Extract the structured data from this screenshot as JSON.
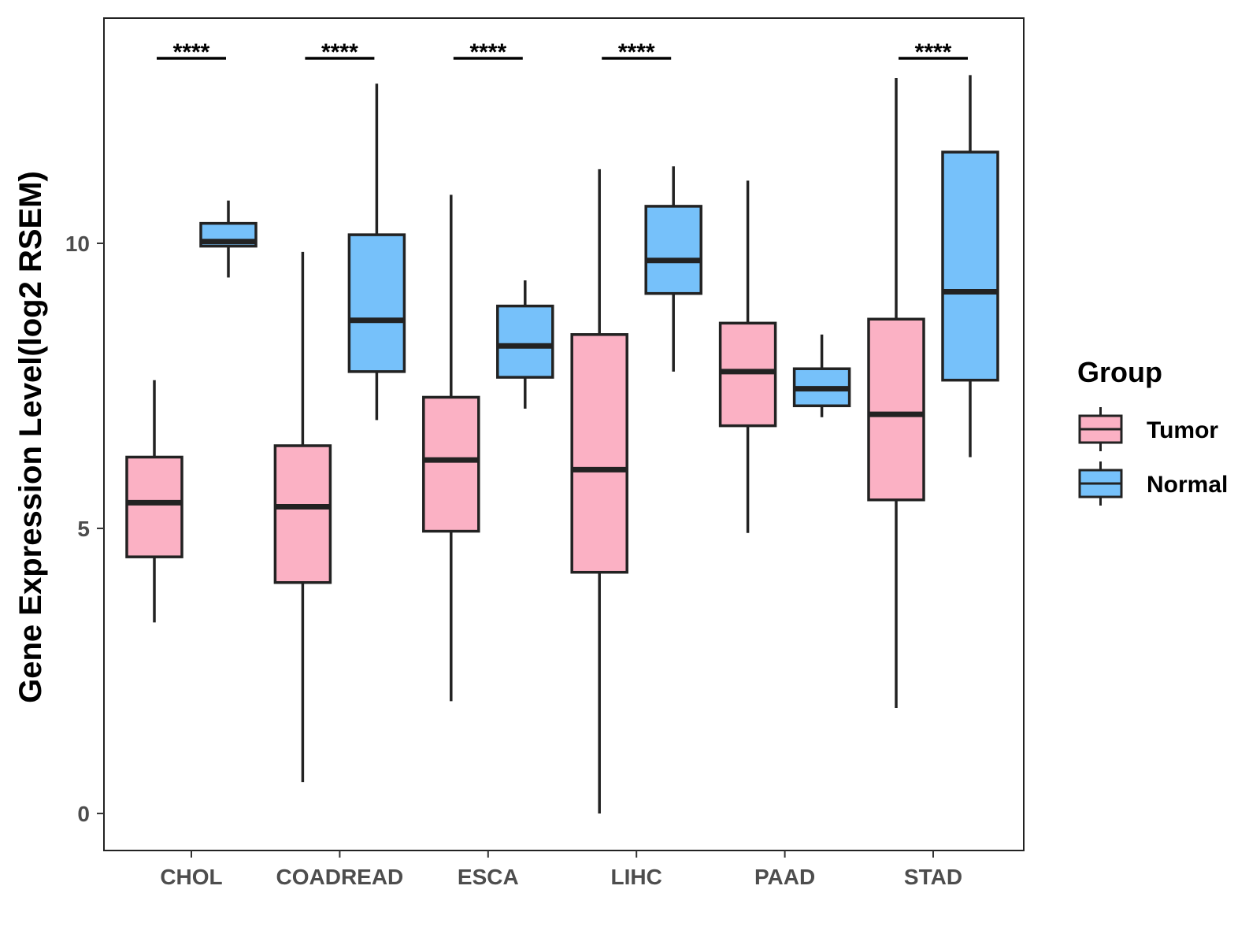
{
  "chart_data": {
    "type": "boxplot",
    "ylabel": "Gene Expression Level(log2 RSEM)",
    "xlabel": "",
    "ylim": [
      -0.65,
      13.95
    ],
    "yticks": [
      0,
      5,
      10
    ],
    "grid": false,
    "legend_position": "right",
    "legend": {
      "title": "Group",
      "entries": [
        "Tumor",
        "Normal"
      ]
    },
    "colors": {
      "Tumor": "#fbb1c4",
      "Normal": "#76c1fa",
      "stroke": "#222222"
    },
    "categories": [
      "CHOL",
      "COADREAD",
      "ESCA",
      "LIHC",
      "PAAD",
      "STAD"
    ],
    "series": [
      {
        "name": "Tumor",
        "boxes": [
          {
            "category": "CHOL",
            "whisker_low": 3.35,
            "q1": 4.5,
            "median": 5.45,
            "q3": 6.25,
            "whisker_high": 7.6
          },
          {
            "category": "COADREAD",
            "whisker_low": 0.55,
            "q1": 4.05,
            "median": 5.38,
            "q3": 6.45,
            "whisker_high": 9.85
          },
          {
            "category": "ESCA",
            "whisker_low": 1.97,
            "q1": 4.95,
            "median": 6.2,
            "q3": 7.3,
            "whisker_high": 10.85
          },
          {
            "category": "LIHC",
            "whisker_low": 0.0,
            "q1": 4.23,
            "median": 6.03,
            "q3": 8.4,
            "whisker_high": 11.3
          },
          {
            "category": "PAAD",
            "whisker_low": 4.92,
            "q1": 6.8,
            "median": 7.75,
            "q3": 8.6,
            "whisker_high": 11.1
          },
          {
            "category": "STAD",
            "whisker_low": 1.85,
            "q1": 5.5,
            "median": 7.0,
            "q3": 8.67,
            "whisker_high": 12.9
          }
        ]
      },
      {
        "name": "Normal",
        "boxes": [
          {
            "category": "CHOL",
            "whisker_low": 9.4,
            "q1": 9.95,
            "median": 10.03,
            "q3": 10.35,
            "whisker_high": 10.75
          },
          {
            "category": "COADREAD",
            "whisker_low": 6.9,
            "q1": 7.75,
            "median": 8.65,
            "q3": 10.15,
            "whisker_high": 12.8
          },
          {
            "category": "ESCA",
            "whisker_low": 7.1,
            "q1": 7.65,
            "median": 8.2,
            "q3": 8.9,
            "whisker_high": 9.35
          },
          {
            "category": "LIHC",
            "whisker_low": 7.75,
            "q1": 9.12,
            "median": 9.7,
            "q3": 10.65,
            "whisker_high": 11.35
          },
          {
            "category": "PAAD",
            "whisker_low": 6.95,
            "q1": 7.15,
            "median": 7.45,
            "q3": 7.8,
            "whisker_high": 8.4
          },
          {
            "category": "STAD",
            "whisker_low": 6.25,
            "q1": 7.6,
            "median": 9.15,
            "q3": 11.6,
            "whisker_high": 12.95
          }
        ]
      }
    ],
    "significance": [
      {
        "category": "CHOL",
        "label": "****"
      },
      {
        "category": "COADREAD",
        "label": "****"
      },
      {
        "category": "ESCA",
        "label": "****"
      },
      {
        "category": "LIHC",
        "label": "****"
      },
      {
        "category": "PAAD",
        "label": ""
      },
      {
        "category": "STAD",
        "label": "****"
      }
    ]
  }
}
